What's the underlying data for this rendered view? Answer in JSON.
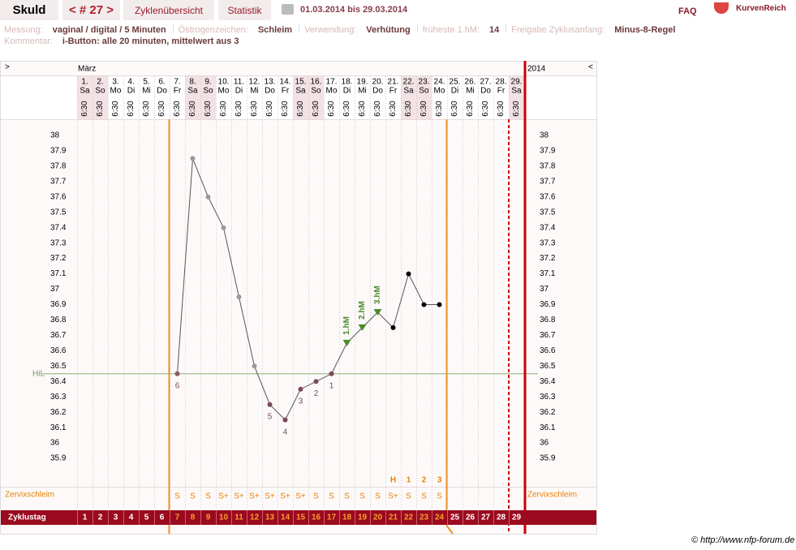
{
  "header": {
    "name": "Skuld",
    "cycle": "< # 27 >",
    "tabs": [
      "Zyklenübersicht",
      "Statistik"
    ],
    "period": "01.03.2014 bis 29.03.2014",
    "faq": "FAQ",
    "logo": "KurvenReich"
  },
  "info": {
    "fields": [
      {
        "label": "Messung:",
        "value": "vaginal / digital / 5 Minuten"
      },
      {
        "label": "Östrogenzeichen:",
        "value": "Schleim"
      },
      {
        "label": "Verwendung:",
        "value": "Verhütung"
      },
      {
        "label": "früheste 1.hM:",
        "value": "14"
      },
      {
        "label": "Freigabe Zyklusanfang:",
        "value": "Minus-8-Regel"
      }
    ],
    "comment_label": "Kommentar:",
    "comment": "i-Button: alle 20 minuten, mittelwert aus 3"
  },
  "chart_data": {
    "type": "line",
    "nav_prev": ">",
    "nav_next": "<",
    "month": "März",
    "year": "2014",
    "categories": [
      "1.",
      "2.",
      "3.",
      "4.",
      "5.",
      "6.",
      "7.",
      "8.",
      "9.",
      "10.",
      "11.",
      "12.",
      "13.",
      "14.",
      "15.",
      "16.",
      "17.",
      "18.",
      "19.",
      "20.",
      "21.",
      "22.",
      "23.",
      "24.",
      "25.",
      "26.",
      "27.",
      "28.",
      "29."
    ],
    "weekdays": [
      "Sa",
      "So",
      "Mo",
      "Di",
      "Mi",
      "Do",
      "Fr",
      "Sa",
      "So",
      "Mo",
      "Di",
      "Mi",
      "Do",
      "Fr",
      "Sa",
      "So",
      "Mo",
      "Di",
      "Mi",
      "Do",
      "Fr",
      "Sa",
      "So",
      "Mo",
      "Di",
      "Mi",
      "Do",
      "Fr",
      "Sa"
    ],
    "times": [
      "6:30",
      "6:30",
      "6:30",
      "6:30",
      "6:30",
      "6:30",
      "6:30",
      "6:30",
      "6:30",
      "6:30",
      "6:30",
      "6:30",
      "6:30",
      "6:30",
      "6:30",
      "6:30",
      "6:30",
      "6:30",
      "6:30",
      "6:30",
      "6:30",
      "6:30",
      "6:30",
      "6:30",
      "6:30",
      "6:30",
      "6:30",
      "6:30",
      "6:30"
    ],
    "series": [
      {
        "color": "#555555",
        "values": [
          null,
          null,
          null,
          null,
          null,
          null,
          36.45,
          37.85,
          37.6,
          37.4,
          36.95,
          36.5,
          36.25,
          36.15,
          36.35,
          36.4,
          36.45,
          36.65,
          36.75,
          36.85,
          36.75,
          37.1,
          36.9,
          36.9,
          null,
          null,
          null,
          null,
          null
        ],
        "marker_colors": [
          null,
          null,
          null,
          null,
          null,
          null,
          "#8a5a66",
          "#999999",
          "#999999",
          "#999999",
          "#999999",
          "#999999",
          "#7a4a5a",
          "#7a4a5a",
          "#7a4a5a",
          "#7a4a5a",
          "#7a4a5a",
          "#4a8a2a",
          "#4a8a2a",
          "#4a8a2a",
          "#000000",
          "#000000",
          "#000000",
          "#000000",
          null,
          null,
          null,
          null,
          null
        ],
        "marker_shapes": [
          null,
          null,
          null,
          null,
          null,
          null,
          "circle",
          "circle",
          "circle",
          "circle",
          "circle",
          "circle",
          "circle",
          "circle",
          "circle",
          "circle",
          "circle",
          "triangle",
          "triangle",
          "triangle",
          "circle",
          "circle",
          "circle",
          "circle",
          null,
          null,
          null,
          null,
          null
        ],
        "point_labels": [
          null,
          null,
          null,
          null,
          null,
          null,
          "6",
          null,
          null,
          null,
          null,
          null,
          "5",
          "4",
          "3",
          "2",
          "1",
          "1.hM",
          "2.hM",
          "3.hM",
          null,
          null,
          null,
          null,
          null,
          null,
          null,
          null,
          null
        ]
      }
    ],
    "ylim": [
      35.8,
      38.1
    ],
    "yticks": [
      35.9,
      36,
      36.1,
      36.2,
      36.3,
      36.4,
      36.5,
      36.6,
      36.7,
      36.8,
      36.9,
      37,
      37.1,
      37.2,
      37.3,
      37.4,
      37.5,
      37.6,
      37.7,
      37.8,
      37.9,
      38
    ],
    "grid": true,
    "hil": {
      "label": "HiL",
      "value": 36.45
    },
    "peak_labels": [
      null,
      null,
      null,
      null,
      null,
      null,
      null,
      null,
      null,
      null,
      null,
      null,
      null,
      null,
      null,
      null,
      null,
      null,
      null,
      null,
      "H",
      "1",
      "2",
      "3",
      null,
      null,
      null,
      null,
      null
    ],
    "cervix_label": "Zervixschleim",
    "cervix": [
      null,
      null,
      null,
      null,
      null,
      null,
      "S",
      "S",
      "S",
      "S+",
      "S+",
      "S+",
      "S+",
      "S+",
      "S+",
      "S",
      "S",
      "S",
      "S",
      "S",
      "S+",
      "S",
      "S",
      "S",
      null,
      null,
      null,
      null,
      null
    ],
    "cycle_label": "Zyklustag",
    "cycle_days": [
      1,
      2,
      3,
      4,
      5,
      6,
      7,
      8,
      9,
      10,
      11,
      12,
      13,
      14,
      15,
      16,
      17,
      18,
      19,
      20,
      21,
      22,
      23,
      24,
      25,
      26,
      27,
      28,
      29
    ]
  },
  "footer": "© http://www.nfp-forum.de"
}
